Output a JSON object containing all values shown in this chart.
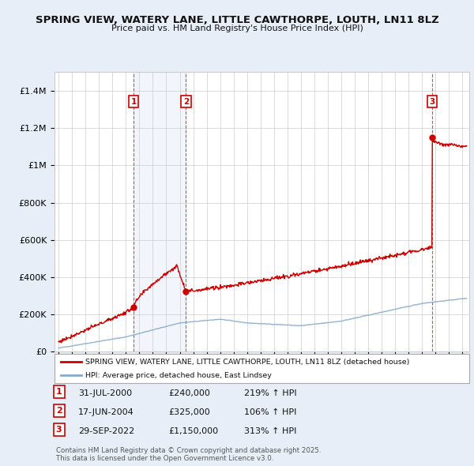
{
  "title": "SPRING VIEW, WATERY LANE, LITTLE CAWTHORPE, LOUTH, LN11 8LZ",
  "subtitle": "Price paid vs. HM Land Registry's House Price Index (HPI)",
  "ylim": [
    0,
    1500000
  ],
  "yticks": [
    0,
    200000,
    400000,
    600000,
    800000,
    1000000,
    1200000,
    1400000
  ],
  "ytick_labels": [
    "£0",
    "£200K",
    "£400K",
    "£600K",
    "£800K",
    "£1M",
    "£1.2M",
    "£1.4M"
  ],
  "background_color": "#e8eef8",
  "plot_background": "#ffffff",
  "shade_color": "#dce8f8",
  "grid_color": "#cccccc",
  "sale_color": "#cc0000",
  "hpi_color": "#88aacc",
  "legend_sale": "SPRING VIEW, WATERY LANE, LITTLE CAWTHORPE, LOUTH, LN11 8LZ (detached house)",
  "legend_hpi": "HPI: Average price, detached house, East Lindsey",
  "transactions": [
    {
      "index": 1,
      "date": "31-JUL-2000",
      "year": 2000.58,
      "price": 240000,
      "pct": "219%",
      "dir": "↑"
    },
    {
      "index": 2,
      "date": "17-JUN-2004",
      "year": 2004.46,
      "price": 325000,
      "pct": "106%",
      "dir": "↑"
    },
    {
      "index": 3,
      "date": "29-SEP-2022",
      "year": 2022.75,
      "price": 1150000,
      "pct": "313%",
      "dir": "↑"
    }
  ],
  "footnote1": "Contains HM Land Registry data © Crown copyright and database right 2025.",
  "footnote2": "This data is licensed under the Open Government Licence v3.0."
}
